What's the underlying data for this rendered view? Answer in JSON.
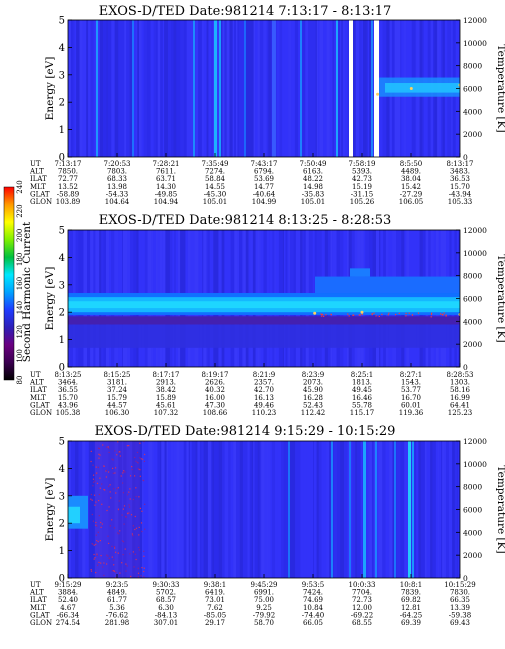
{
  "chart_data": [
    {
      "type": "heatmap",
      "title": "EXOS-D/TED   Date:981214  7:13:17 - 8:13:17",
      "ylabel": "Energy [eV]",
      "y2label": "Temperature [K]",
      "ylim": [
        0,
        5
      ],
      "y2lim": [
        0,
        12000
      ],
      "yticks": [
        "0",
        "1",
        "2",
        "3",
        "4",
        "5"
      ],
      "y2ticks": [
        "0",
        "2000",
        "4000",
        "6000",
        "8000",
        "10000",
        "12000"
      ],
      "row_labels": [
        "UT",
        "ALT",
        "ILAT",
        "MLT",
        "GLAT",
        "GLON"
      ],
      "columns": [
        [
          "7:13:17",
          "7850.",
          "72.77",
          "13.52",
          "-58.89",
          "103.89"
        ],
        [
          "7:20:53",
          "7803.",
          "68.33",
          "13.98",
          "-54.33",
          "104.64"
        ],
        [
          "7:28:21",
          "7611.",
          "63.71",
          "14.30",
          "-49.85",
          "104.94"
        ],
        [
          "7:35:49",
          "7274.",
          "58.84",
          "14.55",
          "-45.30",
          "105.01"
        ],
        [
          "7:43:17",
          "6794.",
          "53.69",
          "14.77",
          "-40.64",
          "104.99"
        ],
        [
          "7:50:49",
          "6163.",
          "48.22",
          "14.98",
          "-35.83",
          "105.01"
        ],
        [
          "7:58:19",
          "5393.",
          "42.73",
          "15.19",
          "-31.15",
          "105.26"
        ],
        [
          "8:5:50",
          "4489.",
          "38.04",
          "15.42",
          "-27.29",
          "106.05"
        ],
        [
          "8:13:17",
          "3483.",
          "36.53",
          "15.70",
          "-43.94",
          "105.33"
        ]
      ],
      "gaps_utc": [
        "7:58:19",
        "8:3:10"
      ],
      "temperature_trace": [
        {
          "ut": "8:0:40",
          "t": 5500
        },
        {
          "ut": "8:5:50",
          "t": 6000
        },
        {
          "ut": "8:13:17",
          "t": 6300
        }
      ]
    },
    {
      "type": "heatmap",
      "title": "EXOS-D/TED   Date:981214  8:13:25 - 8:28:53",
      "ylabel": "Energy [eV]",
      "y2label": "Temperature [K]",
      "ylim": [
        0,
        5
      ],
      "y2lim": [
        0,
        12000
      ],
      "yticks": [
        "0",
        "1",
        "2",
        "3",
        "4",
        "5"
      ],
      "y2ticks": [
        "0",
        "2000",
        "4000",
        "6000",
        "8000",
        "10000",
        "12000"
      ],
      "row_labels": [
        "UT",
        "ALT",
        "ILAT",
        "MLT",
        "GLAT",
        "GLON"
      ],
      "columns": [
        [
          "8:13:25",
          "3464.",
          "36.55",
          "15.70",
          "43.96",
          "105.38"
        ],
        [
          "8:15:25",
          "3181.",
          "37.24",
          "15.79",
          "44.57",
          "106.30"
        ],
        [
          "8:17:17",
          "2913.",
          "38.42",
          "15.89",
          "45.61",
          "107.32"
        ],
        [
          "8:19:17",
          "2626.",
          "40.32",
          "16.00",
          "47.30",
          "108.66"
        ],
        [
          "8:21:9",
          "2357.",
          "42.70",
          "16.13",
          "49.46",
          "110.23"
        ],
        [
          "8:23:9",
          "2073.",
          "45.90",
          "16.28",
          "52.43",
          "112.42"
        ],
        [
          "8:25:1",
          "1813.",
          "49.45",
          "16.46",
          "55.78",
          "115.17"
        ],
        [
          "8:27:1",
          "1543.",
          "53.77",
          "16.70",
          "60.01",
          "119.36"
        ],
        [
          "8:28:53",
          "1303.",
          "58.16",
          "16.99",
          "64.41",
          "125.23"
        ]
      ],
      "temperature_trace": [
        {
          "ut": "8:23:9",
          "t": 4700
        },
        {
          "ut": "8:25:1",
          "t": 4800
        },
        {
          "ut": "8:28:53",
          "t": 4600
        }
      ]
    },
    {
      "type": "heatmap",
      "title": "EXOS-D/TED   Date:981214  9:15:29 - 10:15:29",
      "ylabel": "Energy [eV]",
      "y2label": "Temperature [K]",
      "ylim": [
        0,
        5
      ],
      "y2lim": [
        0,
        12000
      ],
      "yticks": [
        "0",
        "1",
        "2",
        "3",
        "4",
        "5"
      ],
      "y2ticks": [
        "0",
        "2000",
        "4000",
        "6000",
        "8000",
        "10000",
        "12000"
      ],
      "row_labels": [
        "UT",
        "ALT",
        "ILAT",
        "MLT",
        "GLAT",
        "GLON"
      ],
      "columns": [
        [
          "9:15:29",
          "3884.",
          "52.40",
          "4.67",
          "-66.34",
          "274.54"
        ],
        [
          "9:23:5",
          "4849.",
          "61.77",
          "5.36",
          "-76.62",
          "281.98"
        ],
        [
          "9:30:33",
          "5702.",
          "68.57",
          "6.30",
          "-84.13",
          "307.01"
        ],
        [
          "9:38:1",
          "6419.",
          "73.01",
          "7.62",
          "-85.05",
          "29.17"
        ],
        [
          "9:45:29",
          "6991.",
          "75.00",
          "9.25",
          "-79.92",
          "58.70"
        ],
        [
          "9:53:5",
          "7424.",
          "74.69",
          "10.84",
          "-74.40",
          "66.05"
        ],
        [
          "10:0:33",
          "7704.",
          "72.73",
          "12.00",
          "-69.22",
          "68.55"
        ],
        [
          "10:8:1",
          "7839.",
          "69.82",
          "12.81",
          "-64.25",
          "69.39"
        ],
        [
          "10:15:29",
          "7830.",
          "66.35",
          "13.39",
          "-59.38",
          "69.43"
        ]
      ]
    }
  ],
  "colorbar": {
    "label": "Second Harmonic Current",
    "range": [
      80,
      240
    ],
    "ticks": [
      "80",
      "100",
      "120",
      "140",
      "160",
      "180",
      "200",
      "220",
      "240"
    ],
    "colors": [
      "#000000",
      "#3a0050",
      "#6a0080",
      "#2d1fb8",
      "#1e3cff",
      "#00a2ff",
      "#00e8ff",
      "#00c040",
      "#7ff000",
      "#ffff00",
      "#ff9a00",
      "#ff0000"
    ]
  }
}
